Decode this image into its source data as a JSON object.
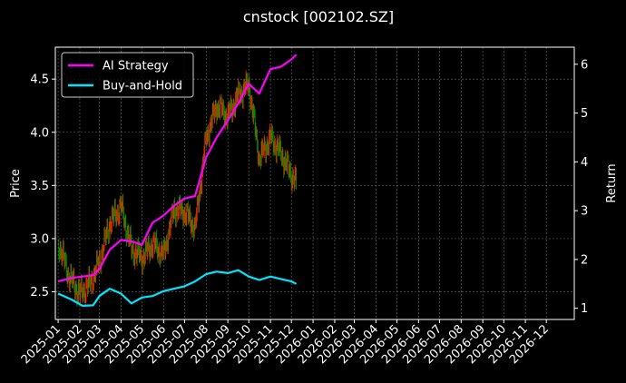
{
  "chart_data": {
    "type": "line",
    "title": "cnstock [002102.SZ]",
    "ylabel": "Price",
    "y2label": "Return",
    "ylim": [
      2.24,
      4.8
    ],
    "y2lim": [
      0.77,
      6.35
    ],
    "xlim": [
      "2024-12-28",
      "2027-01-10"
    ],
    "x_ticks": [
      "2025-01",
      "2025-02",
      "2025-03",
      "2025-04",
      "2025-05",
      "2025-06",
      "2025-07",
      "2025-08",
      "2025-09",
      "2025-10",
      "2025-11",
      "2025-12",
      "2026-01",
      "2026-02",
      "2026-03",
      "2026-04",
      "2026-05",
      "2026-06",
      "2026-07",
      "2026-08",
      "2026-09",
      "2026-10",
      "2026-11",
      "2026-12"
    ],
    "y_ticks": [
      "2.5",
      "3.0",
      "3.5",
      "4.0",
      "4.5"
    ],
    "y2_ticks": [
      "1",
      "2",
      "3",
      "4",
      "5",
      "6"
    ],
    "grid": true,
    "legend": {
      "placement": "top-left"
    },
    "price_series": {
      "name": "Price",
      "up_color": "#ff2a00",
      "down_color": "#009900",
      "x": [
        "2025-01-02",
        "2025-01-16",
        "2025-02-01",
        "2025-02-16",
        "2025-03-01",
        "2025-03-16",
        "2025-04-01",
        "2025-04-16",
        "2025-05-01",
        "2025-05-16",
        "2025-06-01",
        "2025-06-16",
        "2025-07-01",
        "2025-07-16",
        "2025-08-01",
        "2025-08-16",
        "2025-09-01",
        "2025-09-16",
        "2025-10-01",
        "2025-10-16",
        "2025-11-01",
        "2025-11-16",
        "2025-12-01",
        "2025-12-08"
      ],
      "values": [
        2.95,
        2.65,
        2.48,
        2.58,
        2.78,
        3.15,
        3.3,
        2.9,
        2.82,
        2.95,
        2.85,
        3.28,
        3.25,
        3.1,
        3.95,
        4.25,
        4.15,
        4.35,
        4.45,
        3.75,
        3.95,
        3.8,
        3.6,
        3.52
      ]
    },
    "series": [
      {
        "name": "AI Strategy",
        "color": "#ff00ff",
        "axis": "right",
        "x": [
          "2025-01-01",
          "2025-01-20",
          "2025-02-05",
          "2025-02-20",
          "2025-03-01",
          "2025-03-16",
          "2025-04-01",
          "2025-04-16",
          "2025-05-01",
          "2025-05-16",
          "2025-06-01",
          "2025-06-16",
          "2025-07-01",
          "2025-07-16",
          "2025-08-01",
          "2025-08-16",
          "2025-09-01",
          "2025-09-16",
          "2025-10-01",
          "2025-10-16",
          "2025-11-01",
          "2025-11-16",
          "2025-12-01",
          "2025-12-08"
        ],
        "values": [
          1.55,
          1.62,
          1.65,
          1.68,
          1.8,
          2.2,
          2.4,
          2.37,
          2.3,
          2.75,
          2.9,
          3.1,
          3.25,
          3.3,
          4.1,
          4.5,
          4.85,
          5.2,
          5.6,
          5.4,
          5.9,
          5.95,
          6.1,
          6.2
        ]
      },
      {
        "name": "Buy-and-Hold",
        "color": "#00e5ff",
        "axis": "right",
        "x": [
          "2025-01-01",
          "2025-01-20",
          "2025-02-05",
          "2025-02-20",
          "2025-03-01",
          "2025-03-16",
          "2025-04-01",
          "2025-04-16",
          "2025-05-01",
          "2025-05-16",
          "2025-06-01",
          "2025-06-16",
          "2025-07-01",
          "2025-07-16",
          "2025-08-01",
          "2025-08-16",
          "2025-09-01",
          "2025-09-16",
          "2025-10-01",
          "2025-10-16",
          "2025-11-01",
          "2025-11-16",
          "2025-12-01",
          "2025-12-08"
        ],
        "values": [
          1.3,
          1.18,
          1.05,
          1.06,
          1.25,
          1.4,
          1.3,
          1.1,
          1.22,
          1.25,
          1.35,
          1.4,
          1.45,
          1.55,
          1.7,
          1.75,
          1.72,
          1.78,
          1.65,
          1.58,
          1.65,
          1.6,
          1.55,
          1.5
        ]
      }
    ]
  }
}
